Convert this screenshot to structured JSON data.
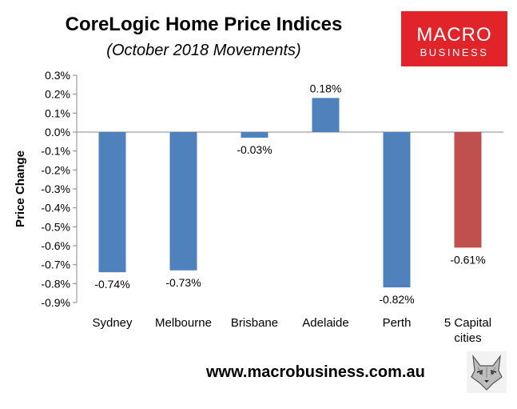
{
  "header": {
    "title": "CoreLogic Home Price Indices",
    "subtitle": "(October 2018 Movements)"
  },
  "logo": {
    "line1": "MACRO",
    "line2": "BUSINESS",
    "color": "#e0242a"
  },
  "footer": {
    "url": "www.macrobusiness.com.au",
    "mascot_icon": "wolf-head-icon"
  },
  "colors": {
    "bar_default": "#4f81bd",
    "bar_highlight": "#c0504d",
    "axis": "#888888"
  },
  "chart_data": {
    "type": "bar",
    "title": "",
    "xlabel": "",
    "ylabel": "Price Change",
    "categories": [
      [
        "Sydney"
      ],
      [
        "Melbourne"
      ],
      [
        "Brisbane"
      ],
      [
        "Adelaide"
      ],
      [
        "Perth"
      ],
      [
        "5 Capital",
        "cities"
      ]
    ],
    "values": [
      -0.74,
      -0.73,
      -0.03,
      0.18,
      -0.82,
      -0.61
    ],
    "data_labels": [
      "-0.74%",
      "-0.73%",
      "-0.03%",
      "0.18%",
      "-0.82%",
      "-0.61%"
    ],
    "highlight_index": 5,
    "ylim": [
      -0.9,
      0.3
    ],
    "yticks": [
      0.3,
      0.2,
      0.1,
      0.0,
      -0.1,
      -0.2,
      -0.3,
      -0.4,
      -0.5,
      -0.6,
      -0.7,
      -0.8,
      -0.9
    ],
    "ytick_labels": [
      "0.3%",
      "0.2%",
      "0.1%",
      "0.0%",
      "-0.1%",
      "-0.2%",
      "-0.3%",
      "-0.4%",
      "-0.5%",
      "-0.6%",
      "-0.7%",
      "-0.8%",
      "-0.9%"
    ],
    "grid": false,
    "legend": "none"
  }
}
